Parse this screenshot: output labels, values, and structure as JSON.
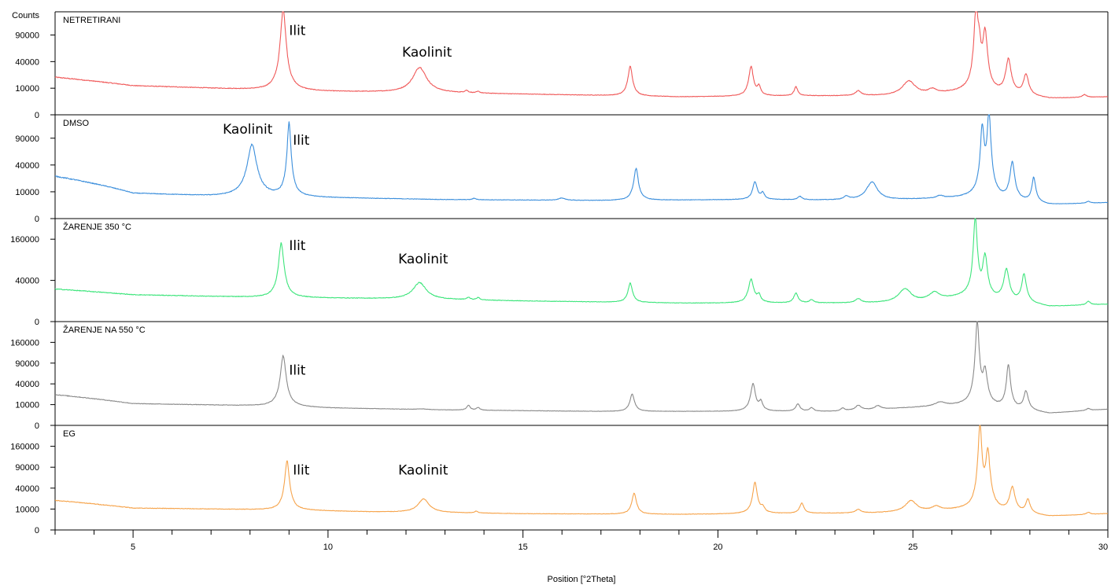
{
  "chart_data": {
    "type": "line",
    "x_label": "Position [°2Theta]",
    "y_unit_label": "Counts",
    "xlim": [
      3,
      30
    ],
    "x_ticks": [
      5,
      10,
      15,
      20,
      25,
      30
    ],
    "x_minor_step": 1,
    "y_scale": "sqrt",
    "panels": [
      {
        "name": "NETRETIRANI",
        "color": "#f05a5a",
        "ylim": [
          0,
          150000
        ],
        "y_ticks": [
          0,
          10000,
          40000,
          90000
        ],
        "baseline": [
          [
            3,
            20000
          ],
          [
            5,
            12000
          ],
          [
            9,
            8000
          ],
          [
            10,
            7600
          ],
          [
            12,
            7000
          ],
          [
            15,
            6000
          ],
          [
            19,
            4500
          ],
          [
            22,
            5000
          ],
          [
            25,
            5000
          ],
          [
            26.3,
            7000
          ],
          [
            28.5,
            3500
          ],
          [
            30,
            4500
          ]
        ],
        "peaks": [
          [
            8.85,
            150000,
            0.07
          ],
          [
            12.35,
            25000,
            0.18
          ],
          [
            17.75,
            28000,
            0.06
          ],
          [
            20.85,
            28000,
            0.06
          ],
          [
            21.05,
            6000,
            0.05
          ],
          [
            13.55,
            1500,
            0.05
          ],
          [
            13.85,
            1000,
            0.05
          ],
          [
            22.0,
            6000,
            0.05
          ],
          [
            23.6,
            3000,
            0.08
          ],
          [
            24.9,
            11000,
            0.18
          ],
          [
            25.5,
            3000,
            0.12
          ],
          [
            26.62,
            150000,
            0.05
          ],
          [
            26.85,
            90000,
            0.06
          ],
          [
            26.7,
            50000,
            0.05
          ],
          [
            27.45,
            38000,
            0.07
          ],
          [
            27.9,
            18000,
            0.07
          ],
          [
            29.4,
            1500,
            0.06
          ]
        ],
        "annotations": [
          {
            "text": "Ilit",
            "x": 9.0,
            "y": 90000
          },
          {
            "text": "Kaolinit",
            "x": 11.9,
            "y": 48000
          }
        ]
      },
      {
        "name": "DMSO",
        "color": "#3c8fdc",
        "ylim": [
          0,
          150000
        ],
        "y_ticks": [
          0,
          10000,
          40000,
          90000
        ],
        "baseline": [
          [
            3,
            25000
          ],
          [
            5,
            9000
          ],
          [
            7,
            7000
          ],
          [
            10,
            6000
          ],
          [
            13,
            5000
          ],
          [
            17,
            4500
          ],
          [
            21,
            5000
          ],
          [
            24,
            4500
          ],
          [
            26.5,
            6000
          ],
          [
            28.5,
            2500
          ],
          [
            30,
            3500
          ]
        ],
        "peaks": [
          [
            8.05,
            70000,
            0.12
          ],
          [
            9.0,
            120000,
            0.05
          ],
          [
            17.9,
            30000,
            0.06
          ],
          [
            20.95,
            14000,
            0.06
          ],
          [
            21.15,
            4000,
            0.05
          ],
          [
            13.75,
            800,
            0.05
          ],
          [
            16.0,
            1200,
            0.1
          ],
          [
            22.1,
            2000,
            0.06
          ],
          [
            23.3,
            2000,
            0.08
          ],
          [
            23.95,
            14000,
            0.15
          ],
          [
            25.7,
            1500,
            0.1
          ],
          [
            26.78,
            110000,
            0.05
          ],
          [
            26.95,
            150000,
            0.05
          ],
          [
            27.55,
            40000,
            0.06
          ],
          [
            28.1,
            20000,
            0.05
          ],
          [
            29.5,
            800,
            0.06
          ]
        ],
        "annotations": [
          {
            "text": "Kaolinit",
            "x": 7.3,
            "y": 100000
          },
          {
            "text": "Ilit",
            "x": 9.1,
            "y": 76000
          }
        ]
      },
      {
        "name": "ŽARENJE 350 °C",
        "color": "#3ee57c",
        "ylim": [
          0,
          250000
        ],
        "y_ticks": [
          0,
          40000,
          160000
        ],
        "baseline": [
          [
            3,
            25000
          ],
          [
            5,
            17000
          ],
          [
            8,
            14000
          ],
          [
            10,
            13000
          ],
          [
            12,
            12000
          ],
          [
            15,
            10000
          ],
          [
            19,
            8000
          ],
          [
            22,
            8000
          ],
          [
            25,
            8000
          ],
          [
            26.3,
            14000
          ],
          [
            28.5,
            5000
          ],
          [
            30,
            7000
          ]
        ],
        "peaks": [
          [
            8.8,
            130000,
            0.07
          ],
          [
            12.35,
            24000,
            0.18
          ],
          [
            17.75,
            26000,
            0.06
          ],
          [
            20.85,
            34000,
            0.07
          ],
          [
            21.05,
            8000,
            0.05
          ],
          [
            13.6,
            2500,
            0.05
          ],
          [
            13.85,
            2500,
            0.05
          ],
          [
            22.0,
            11000,
            0.06
          ],
          [
            22.4,
            3000,
            0.06
          ],
          [
            23.6,
            4000,
            0.08
          ],
          [
            24.8,
            17000,
            0.18
          ],
          [
            25.55,
            9000,
            0.15
          ],
          [
            26.6,
            240000,
            0.05
          ],
          [
            26.85,
            90000,
            0.06
          ],
          [
            27.4,
            55000,
            0.07
          ],
          [
            27.85,
            45000,
            0.06
          ],
          [
            29.5,
            3000,
            0.06
          ]
        ],
        "annotations": [
          {
            "text": "Ilit",
            "x": 9.0,
            "y": 120000
          },
          {
            "text": "Kaolinit",
            "x": 11.8,
            "y": 80000
          }
        ]
      },
      {
        "name": "ŽARENJE NA 550 °C",
        "color": "#8a8a8a",
        "ylim": [
          0,
          250000
        ],
        "y_ticks": [
          0,
          10000,
          40000,
          90000,
          160000
        ],
        "baseline": [
          [
            3,
            22000
          ],
          [
            5,
            11000
          ],
          [
            8,
            9000
          ],
          [
            10,
            7000
          ],
          [
            13,
            5500
          ],
          [
            17,
            4500
          ],
          [
            20,
            4500
          ],
          [
            23,
            4500
          ],
          [
            26.3,
            9000
          ],
          [
            28.5,
            3000
          ],
          [
            30,
            6000
          ]
        ],
        "peaks": [
          [
            8.85,
            105000,
            0.07
          ],
          [
            13.6,
            4000,
            0.05
          ],
          [
            13.85,
            2000,
            0.05
          ],
          [
            12.4,
            500,
            0.15
          ],
          [
            17.8,
            18000,
            0.06
          ],
          [
            20.9,
            36000,
            0.06
          ],
          [
            21.1,
            8000,
            0.05
          ],
          [
            22.05,
            6000,
            0.06
          ],
          [
            22.4,
            2500,
            0.06
          ],
          [
            23.2,
            2000,
            0.06
          ],
          [
            23.6,
            4000,
            0.08
          ],
          [
            24.1,
            3000,
            0.08
          ],
          [
            25.7,
            4000,
            0.15
          ],
          [
            26.65,
            240000,
            0.05
          ],
          [
            26.85,
            60000,
            0.06
          ],
          [
            27.45,
            80000,
            0.05
          ],
          [
            27.9,
            22000,
            0.06
          ],
          [
            29.5,
            1500,
            0.06
          ]
        ],
        "annotations": [
          {
            "text": "Ilit",
            "x": 9.0,
            "y": 60000
          }
        ]
      },
      {
        "name": "EG",
        "color": "#f6a44c",
        "ylim": [
          0,
          250000
        ],
        "y_ticks": [
          0,
          10000,
          40000,
          90000,
          160000
        ],
        "baseline": [
          [
            3,
            20000
          ],
          [
            5,
            11000
          ],
          [
            9,
            9000
          ],
          [
            11,
            7500
          ],
          [
            15,
            6000
          ],
          [
            19,
            5500
          ],
          [
            21,
            6000
          ],
          [
            24,
            6500
          ],
          [
            26.3,
            9000
          ],
          [
            28.5,
            4000
          ],
          [
            30,
            6000
          ]
        ],
        "peaks": [
          [
            8.95,
            100000,
            0.06
          ],
          [
            12.45,
            15000,
            0.15
          ],
          [
            17.85,
            25000,
            0.06
          ],
          [
            20.95,
            45000,
            0.06
          ],
          [
            21.15,
            5000,
            0.05
          ],
          [
            13.8,
            1500,
            0.05
          ],
          [
            22.15,
            10000,
            0.06
          ],
          [
            23.6,
            3000,
            0.08
          ],
          [
            24.95,
            12000,
            0.15
          ],
          [
            25.6,
            4000,
            0.12
          ],
          [
            26.72,
            240000,
            0.05
          ],
          [
            26.92,
            130000,
            0.06
          ],
          [
            27.55,
            35000,
            0.07
          ],
          [
            27.95,
            15000,
            0.06
          ],
          [
            29.5,
            1500,
            0.06
          ]
        ],
        "annotations": [
          {
            "text": "Ilit",
            "x": 9.1,
            "y": 70000
          },
          {
            "text": "Kaolinit",
            "x": 11.8,
            "y": 70000
          }
        ]
      }
    ]
  }
}
